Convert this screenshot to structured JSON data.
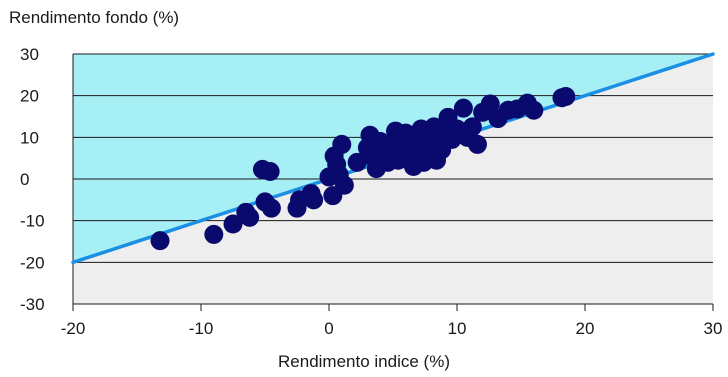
{
  "chart_data": {
    "type": "scatter",
    "title": "",
    "xlabel": "Rendimento indice (%)",
    "ylabel": "Rendimento fondo (%)",
    "xlim": [
      -20,
      30
    ],
    "ylim": [
      -30,
      30
    ],
    "x_ticks": [
      "-20",
      "-10",
      "0",
      "10",
      "20",
      "30"
    ],
    "y_ticks": [
      "30",
      "20",
      "10",
      "0",
      "-10",
      "-20",
      "-30"
    ],
    "grid": "horizontal",
    "colors": {
      "points": "#0a0a6e",
      "reference_line": "#1a8fe3",
      "upper_region": "#a6f0f5",
      "lower_region": "#eeeeee",
      "gridlines": "#1a1a1a"
    },
    "reference_line": {
      "from": [
        -20,
        -20
      ],
      "to": [
        30,
        30
      ]
    },
    "series": [
      {
        "points": [
          [
            -13.2,
            -14.8
          ],
          [
            -9.0,
            -13.3
          ],
          [
            -7.5,
            -10.8
          ],
          [
            -6.5,
            -8.0
          ],
          [
            -6.2,
            -9.2
          ],
          [
            -5.0,
            -5.5
          ],
          [
            -5.2,
            2.3
          ],
          [
            -4.6,
            1.8
          ],
          [
            -4.5,
            -7.0
          ],
          [
            -2.5,
            -7.0
          ],
          [
            -2.3,
            -5.0
          ],
          [
            -1.4,
            -3.5
          ],
          [
            -1.2,
            -5.0
          ],
          [
            0.0,
            0.5
          ],
          [
            0.3,
            -4.0
          ],
          [
            0.4,
            5.5
          ],
          [
            0.6,
            3.5
          ],
          [
            0.8,
            1.0
          ],
          [
            1.0,
            8.3
          ],
          [
            1.2,
            -1.5
          ],
          [
            2.2,
            4.0
          ],
          [
            3.0,
            7.5
          ],
          [
            3.2,
            10.5
          ],
          [
            3.5,
            5.0
          ],
          [
            3.7,
            2.5
          ],
          [
            4.0,
            9.0
          ],
          [
            4.3,
            7.0
          ],
          [
            4.6,
            4.0
          ],
          [
            4.8,
            8.5
          ],
          [
            5.0,
            6.5
          ],
          [
            5.2,
            11.5
          ],
          [
            5.4,
            4.5
          ],
          [
            5.6,
            9.5
          ],
          [
            5.8,
            7.0
          ],
          [
            6.0,
            11.0
          ],
          [
            6.2,
            5.0
          ],
          [
            6.4,
            8.0
          ],
          [
            6.6,
            3.0
          ],
          [
            6.8,
            10.0
          ],
          [
            7.0,
            6.0
          ],
          [
            7.2,
            12.0
          ],
          [
            7.4,
            4.0
          ],
          [
            7.6,
            8.0
          ],
          [
            7.8,
            10.5
          ],
          [
            8.0,
            6.0
          ],
          [
            8.2,
            12.5
          ],
          [
            8.4,
            4.5
          ],
          [
            8.6,
            9.0
          ],
          [
            8.8,
            7.0
          ],
          [
            9.0,
            11.0
          ],
          [
            9.3,
            14.8
          ],
          [
            9.6,
            9.5
          ],
          [
            10.0,
            12.0
          ],
          [
            10.5,
            17.0
          ],
          [
            10.8,
            10.0
          ],
          [
            11.2,
            12.5
          ],
          [
            11.6,
            8.3
          ],
          [
            12.0,
            16.0
          ],
          [
            12.6,
            18.0
          ],
          [
            13.2,
            14.5
          ],
          [
            14.0,
            16.5
          ],
          [
            14.7,
            16.8
          ],
          [
            15.5,
            18.2
          ],
          [
            16.0,
            16.5
          ],
          [
            18.2,
            19.5
          ],
          [
            18.5,
            19.8
          ]
        ]
      }
    ]
  }
}
